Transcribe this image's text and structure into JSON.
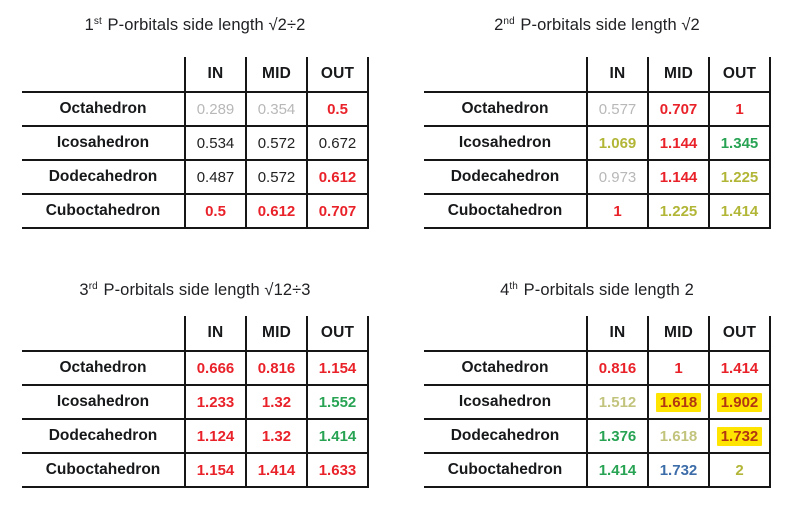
{
  "palette": {
    "black": "#212121",
    "gray": "#b8b8b8",
    "red": "#e9222a",
    "green": "#27a353",
    "olive": "#b2b637",
    "paleolive": "#c2c47d",
    "blue": "#3d6da9",
    "darkred": "#b13611",
    "highlight": "#ffe400",
    "border": "#161616"
  },
  "tables": [
    {
      "title": {
        "num": "1",
        "ord": "st",
        "rest": " P-orbitals side length √2÷2"
      },
      "columns": [
        "IN",
        "MID",
        "OUT"
      ],
      "rows": [
        {
          "label": "Octahedron",
          "cells": [
            {
              "v": "0.289",
              "c": "gray"
            },
            {
              "v": "0.354",
              "c": "gray"
            },
            {
              "v": "0.5",
              "c": "red",
              "b": true
            }
          ]
        },
        {
          "label": "Icosahedron",
          "cells": [
            {
              "v": "0.534",
              "c": "black"
            },
            {
              "v": "0.572",
              "c": "black"
            },
            {
              "v": "0.672",
              "c": "black"
            }
          ]
        },
        {
          "label": "Dodecahedron",
          "cells": [
            {
              "v": "0.487",
              "c": "black"
            },
            {
              "v": "0.572",
              "c": "black"
            },
            {
              "v": "0.612",
              "c": "red",
              "b": true
            }
          ]
        },
        {
          "label": "Cuboctahedron",
          "cells": [
            {
              "v": "0.5",
              "c": "red",
              "b": true
            },
            {
              "v": "0.612",
              "c": "red",
              "b": true
            },
            {
              "v": "0.707",
              "c": "red",
              "b": true
            }
          ]
        }
      ]
    },
    {
      "title": {
        "num": "2",
        "ord": "nd",
        "rest": " P-orbitals side length √2"
      },
      "columns": [
        "IN",
        "MID",
        "OUT"
      ],
      "rows": [
        {
          "label": "Octahedron",
          "cells": [
            {
              "v": "0.577",
              "c": "gray"
            },
            {
              "v": "0.707",
              "c": "red",
              "b": true
            },
            {
              "v": "1",
              "c": "red",
              "b": true
            }
          ]
        },
        {
          "label": "Icosahedron",
          "cells": [
            {
              "v": "1.069",
              "c": "olive",
              "b": true
            },
            {
              "v": "1.144",
              "c": "red",
              "b": true
            },
            {
              "v": "1.345",
              "c": "green",
              "b": true
            }
          ]
        },
        {
          "label": "Dodecahedron",
          "cells": [
            {
              "v": "0.973",
              "c": "gray"
            },
            {
              "v": "1.144",
              "c": "red",
              "b": true
            },
            {
              "v": "1.225",
              "c": "olive",
              "b": true
            }
          ]
        },
        {
          "label": "Cuboctahedron",
          "cells": [
            {
              "v": "1",
              "c": "red",
              "b": true
            },
            {
              "v": "1.225",
              "c": "olive",
              "b": true
            },
            {
              "v": "1.414",
              "c": "olive",
              "b": true
            }
          ]
        }
      ]
    },
    {
      "title": {
        "num": "3",
        "ord": "rd",
        "rest": " P-orbitals side length √12÷3"
      },
      "columns": [
        "IN",
        "MID",
        "OUT"
      ],
      "rows": [
        {
          "label": "Octahedron",
          "cells": [
            {
              "v": "0.666",
              "c": "red",
              "b": true
            },
            {
              "v": "0.816",
              "c": "red",
              "b": true
            },
            {
              "v": "1.154",
              "c": "red",
              "b": true
            }
          ]
        },
        {
          "label": "Icosahedron",
          "cells": [
            {
              "v": "1.233",
              "c": "red",
              "b": true
            },
            {
              "v": "1.32",
              "c": "red",
              "b": true
            },
            {
              "v": "1.552",
              "c": "green",
              "b": true
            }
          ]
        },
        {
          "label": "Dodecahedron",
          "cells": [
            {
              "v": "1.124",
              "c": "red",
              "b": true
            },
            {
              "v": "1.32",
              "c": "red",
              "b": true
            },
            {
              "v": "1.414",
              "c": "green",
              "b": true
            }
          ]
        },
        {
          "label": "Cuboctahedron",
          "cells": [
            {
              "v": "1.154",
              "c": "red",
              "b": true
            },
            {
              "v": "1.414",
              "c": "red",
              "b": true
            },
            {
              "v": "1.633",
              "c": "red",
              "b": true
            }
          ]
        }
      ]
    },
    {
      "title": {
        "num": "4",
        "ord": "th",
        "rest": " P-orbitals side length 2"
      },
      "columns": [
        "IN",
        "MID",
        "OUT"
      ],
      "rows": [
        {
          "label": "Octahedron",
          "cells": [
            {
              "v": "0.816",
              "c": "red",
              "b": true
            },
            {
              "v": "1",
              "c": "red",
              "b": true
            },
            {
              "v": "1.414",
              "c": "red",
              "b": true
            }
          ]
        },
        {
          "label": "Icosahedron",
          "cells": [
            {
              "v": "1.512",
              "c": "paleolive",
              "b": true
            },
            {
              "v": "1.618",
              "c": "darkred",
              "b": true,
              "hl": true
            },
            {
              "v": "1.902",
              "c": "darkred",
              "b": true,
              "hl": true
            }
          ]
        },
        {
          "label": "Dodecahedron",
          "cells": [
            {
              "v": "1.376",
              "c": "green",
              "b": true
            },
            {
              "v": "1.618",
              "c": "paleolive",
              "b": true
            },
            {
              "v": "1.732",
              "c": "darkred",
              "b": true,
              "hl": true
            }
          ]
        },
        {
          "label": "Cuboctahedron",
          "cells": [
            {
              "v": "1.414",
              "c": "green",
              "b": true
            },
            {
              "v": "1.732",
              "c": "blue",
              "b": true
            },
            {
              "v": "2",
              "c": "olive",
              "b": true
            }
          ]
        }
      ]
    }
  ]
}
